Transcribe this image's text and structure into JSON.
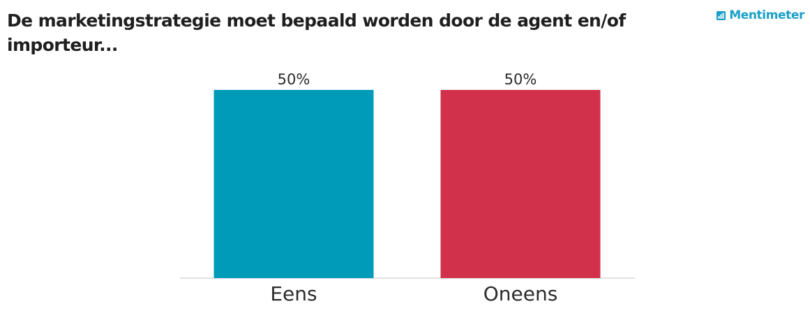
{
  "title": "De marketingstrategie moet bepaald worden door de agent en/of importeur...",
  "brand": {
    "name": "Mentimeter",
    "icon": "mentimeter-bars-icon",
    "color": "#1aa0c8"
  },
  "chart_data": {
    "type": "bar",
    "title": "De marketingstrategie moet bepaald worden door de agent en/of importeur...",
    "categories": [
      "Eens",
      "Oneens"
    ],
    "values": [
      50,
      50
    ],
    "value_labels": [
      "50%",
      "50%"
    ],
    "colors": [
      "#009bb8",
      "#d2314c"
    ],
    "ylim": [
      0,
      50
    ],
    "grid": false,
    "legend": "none",
    "xlabel": "",
    "ylabel": ""
  }
}
